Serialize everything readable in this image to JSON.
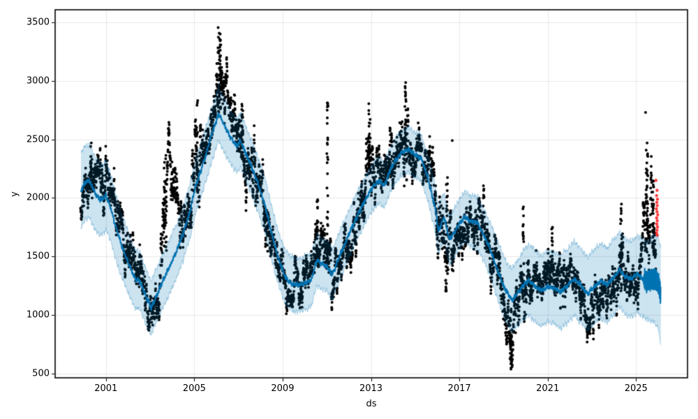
{
  "chart_data": {
    "type": "line+scatter+band",
    "title": "",
    "xlabel": "ds",
    "ylabel": "y",
    "x_ticks": [
      2001,
      2005,
      2009,
      2013,
      2017,
      2021,
      2025
    ],
    "y_ticks": [
      500,
      1000,
      1500,
      2000,
      2500,
      3000,
      3500
    ],
    "xlim": [
      1998.7,
      2027.33
    ],
    "ylim": [
      464,
      3607
    ],
    "grid": true,
    "legend": "none",
    "colors": {
      "observations": "#000000",
      "forecast_line": "#0072B2",
      "uncertainty_band": "rgba(0,114,178,0.2)",
      "band_edge": "rgba(0,114,178,0.28)",
      "anomalies": "rgba(255,0,0,0.78)",
      "grid": "rgba(128,128,128,0.18)",
      "axis": "#000000"
    },
    "series": {
      "forecast": {
        "name": "yhat-forecast-line",
        "keypoints": [
          [
            1999.87,
            2060
          ],
          [
            2000.05,
            2130
          ],
          [
            2000.25,
            2150
          ],
          [
            2000.5,
            2040
          ],
          [
            2000.75,
            1980
          ],
          [
            2001.0,
            2020
          ],
          [
            2001.2,
            1930
          ],
          [
            2001.45,
            1750
          ],
          [
            2001.7,
            1600
          ],
          [
            2002.0,
            1450
          ],
          [
            2002.3,
            1310
          ],
          [
            2002.55,
            1290
          ],
          [
            2002.8,
            1160
          ],
          [
            2003.05,
            1060
          ],
          [
            2003.3,
            1170
          ],
          [
            2003.6,
            1300
          ],
          [
            2003.9,
            1420
          ],
          [
            2004.2,
            1550
          ],
          [
            2004.5,
            1700
          ],
          [
            2004.8,
            1880
          ],
          [
            2005.05,
            2100
          ],
          [
            2005.3,
            2230
          ],
          [
            2005.6,
            2420
          ],
          [
            2005.85,
            2580
          ],
          [
            2006.1,
            2720
          ],
          [
            2006.35,
            2620
          ],
          [
            2006.6,
            2530
          ],
          [
            2006.9,
            2450
          ],
          [
            2007.1,
            2490
          ],
          [
            2007.35,
            2370
          ],
          [
            2007.6,
            2260
          ],
          [
            2007.9,
            2110
          ],
          [
            2008.2,
            1940
          ],
          [
            2008.5,
            1700
          ],
          [
            2008.8,
            1490
          ],
          [
            2009.1,
            1330
          ],
          [
            2009.4,
            1265
          ],
          [
            2009.7,
            1255
          ],
          [
            2010.0,
            1270
          ],
          [
            2010.3,
            1300
          ],
          [
            2010.55,
            1470
          ],
          [
            2010.75,
            1440
          ],
          [
            2011.0,
            1415
          ],
          [
            2011.25,
            1345
          ],
          [
            2011.5,
            1470
          ],
          [
            2011.75,
            1580
          ],
          [
            2012.0,
            1690
          ],
          [
            2012.3,
            1820
          ],
          [
            2012.6,
            1930
          ],
          [
            2012.9,
            2040
          ],
          [
            2013.1,
            2100
          ],
          [
            2013.35,
            2150
          ],
          [
            2013.6,
            2105
          ],
          [
            2013.85,
            2230
          ],
          [
            2014.1,
            2320
          ],
          [
            2014.4,
            2390
          ],
          [
            2014.7,
            2415
          ],
          [
            2015.0,
            2370
          ],
          [
            2015.3,
            2330
          ],
          [
            2015.6,
            2150
          ],
          [
            2015.9,
            1920
          ],
          [
            2016.05,
            1720
          ],
          [
            2016.3,
            1840
          ],
          [
            2016.55,
            1640
          ],
          [
            2016.8,
            1710
          ],
          [
            2017.0,
            1780
          ],
          [
            2017.25,
            1840
          ],
          [
            2017.5,
            1800
          ],
          [
            2017.8,
            1790
          ],
          [
            2018.1,
            1690
          ],
          [
            2018.4,
            1560
          ],
          [
            2018.7,
            1400
          ],
          [
            2019.0,
            1250
          ],
          [
            2019.35,
            1130
          ],
          [
            2019.6,
            1180
          ],
          [
            2019.9,
            1260
          ],
          [
            2020.15,
            1300
          ],
          [
            2020.4,
            1250
          ],
          [
            2020.7,
            1210
          ],
          [
            2021.0,
            1240
          ],
          [
            2021.3,
            1230
          ],
          [
            2021.6,
            1200
          ],
          [
            2021.9,
            1250
          ],
          [
            2022.2,
            1310
          ],
          [
            2022.5,
            1250
          ],
          [
            2022.8,
            1180
          ],
          [
            2023.1,
            1240
          ],
          [
            2023.4,
            1290
          ],
          [
            2023.7,
            1260
          ],
          [
            2024.0,
            1320
          ],
          [
            2024.25,
            1390
          ],
          [
            2024.5,
            1330
          ],
          [
            2024.8,
            1310
          ],
          [
            2025.05,
            1350
          ],
          [
            2025.3,
            1310
          ],
          [
            2025.55,
            1290
          ],
          [
            2025.8,
            1310
          ],
          [
            2026.0,
            1280
          ],
          [
            2026.12,
            1170
          ]
        ]
      },
      "uncertainty": {
        "name": "interval-halfwidth",
        "keypoints": [
          [
            1999.87,
            320
          ],
          [
            2000.5,
            310
          ],
          [
            2001.5,
            280
          ],
          [
            2002.5,
            240
          ],
          [
            2003.5,
            230
          ],
          [
            2005,
            230
          ],
          [
            2006.5,
            230
          ],
          [
            2008,
            230
          ],
          [
            2009.5,
            230
          ],
          [
            2011,
            215
          ],
          [
            2012.5,
            200
          ],
          [
            2014,
            190
          ],
          [
            2015.5,
            200
          ],
          [
            2017,
            210
          ],
          [
            2018.3,
            230
          ],
          [
            2019.3,
            260
          ],
          [
            2020,
            300
          ],
          [
            2022,
            310
          ],
          [
            2024,
            320
          ],
          [
            2025.5,
            330
          ],
          [
            2026.12,
            410
          ]
        ]
      },
      "observations": {
        "name": "history-y-scatter",
        "x_range": [
          1999.85,
          2025.9
        ],
        "trend": [
          [
            1999.85,
            1950,
            70
          ],
          [
            2000.1,
            2130,
            110
          ],
          [
            2000.4,
            2230,
            110
          ],
          [
            2000.7,
            2150,
            110
          ],
          [
            2001.0,
            2180,
            130
          ],
          [
            2001.3,
            2000,
            110
          ],
          [
            2001.6,
            1730,
            100
          ],
          [
            2001.95,
            1600,
            90
          ],
          [
            2002.3,
            1400,
            90
          ],
          [
            2002.6,
            1330,
            90
          ],
          [
            2002.9,
            1090,
            100
          ],
          [
            2003.1,
            1000,
            85
          ],
          [
            2003.4,
            1200,
            90
          ],
          [
            2003.65,
            1900,
            230
          ],
          [
            2003.9,
            2150,
            140
          ],
          [
            2004.15,
            2050,
            150
          ],
          [
            2004.4,
            1800,
            130
          ],
          [
            2004.65,
            1850,
            120
          ],
          [
            2004.9,
            2050,
            150
          ],
          [
            2005.12,
            2350,
            200
          ],
          [
            2005.35,
            2330,
            130
          ],
          [
            2005.6,
            2450,
            120
          ],
          [
            2005.85,
            2620,
            140
          ],
          [
            2006.1,
            2950,
            180
          ],
          [
            2006.35,
            2920,
            150
          ],
          [
            2006.6,
            2700,
            140
          ],
          [
            2006.9,
            2560,
            130
          ],
          [
            2007.2,
            2500,
            130
          ],
          [
            2007.5,
            2350,
            120
          ],
          [
            2007.8,
            2200,
            130
          ],
          [
            2008.1,
            2000,
            130
          ],
          [
            2008.4,
            1800,
            120
          ],
          [
            2008.7,
            1550,
            110
          ],
          [
            2009.0,
            1320,
            110
          ],
          [
            2009.3,
            1200,
            90
          ],
          [
            2009.6,
            1250,
            90
          ],
          [
            2009.9,
            1280,
            90
          ],
          [
            2010.2,
            1330,
            100
          ],
          [
            2010.5,
            1560,
            150
          ],
          [
            2010.75,
            1540,
            130
          ],
          [
            2011.0,
            1550,
            160
          ],
          [
            2011.25,
            1300,
            110
          ],
          [
            2011.5,
            1400,
            110
          ],
          [
            2011.8,
            1550,
            110
          ],
          [
            2012.1,
            1700,
            110
          ],
          [
            2012.4,
            1820,
            120
          ],
          [
            2012.7,
            2000,
            140
          ],
          [
            2012.95,
            2280,
            180
          ],
          [
            2013.2,
            2250,
            140
          ],
          [
            2013.5,
            2150,
            120
          ],
          [
            2013.8,
            2300,
            130
          ],
          [
            2014.1,
            2380,
            130
          ],
          [
            2014.4,
            2450,
            150
          ],
          [
            2014.6,
            2520,
            160
          ],
          [
            2014.9,
            2400,
            130
          ],
          [
            2015.2,
            2350,
            130
          ],
          [
            2015.5,
            2260,
            140
          ],
          [
            2015.8,
            2100,
            140
          ],
          [
            2016.05,
            1600,
            170
          ],
          [
            2016.3,
            1800,
            170
          ],
          [
            2016.55,
            1620,
            120
          ],
          [
            2016.8,
            1600,
            110
          ],
          [
            2017.1,
            1700,
            120
          ],
          [
            2017.4,
            1780,
            130
          ],
          [
            2017.7,
            1780,
            130
          ],
          [
            2018.0,
            1700,
            130
          ],
          [
            2018.3,
            1580,
            120
          ],
          [
            2018.6,
            1450,
            120
          ],
          [
            2018.9,
            1280,
            130
          ],
          [
            2019.15,
            1050,
            140
          ],
          [
            2019.35,
            830,
            150
          ],
          [
            2019.6,
            1050,
            140
          ],
          [
            2019.85,
            1350,
            170
          ],
          [
            2020.1,
            1380,
            140
          ],
          [
            2020.4,
            1280,
            110
          ],
          [
            2020.7,
            1250,
            100
          ],
          [
            2021.0,
            1300,
            120
          ],
          [
            2021.3,
            1380,
            130
          ],
          [
            2021.6,
            1250,
            120
          ],
          [
            2021.9,
            1280,
            110
          ],
          [
            2022.2,
            1270,
            100
          ],
          [
            2022.5,
            1150,
            100
          ],
          [
            2022.8,
            1030,
            90
          ],
          [
            2023.1,
            1080,
            90
          ],
          [
            2023.4,
            1180,
            100
          ],
          [
            2023.7,
            1200,
            110
          ],
          [
            2024.0,
            1250,
            120
          ],
          [
            2024.3,
            1450,
            180
          ],
          [
            2024.55,
            1320,
            130
          ],
          [
            2024.8,
            1180,
            110
          ],
          [
            2025.05,
            1300,
            120
          ],
          [
            2025.3,
            1500,
            150
          ],
          [
            2025.5,
            1950,
            220
          ],
          [
            2025.7,
            1900,
            180
          ],
          [
            2025.9,
            1800,
            140
          ]
        ]
      },
      "volatility_clusters": [
        [
          2000.33,
          0.1,
          2150,
          2500,
          16
        ],
        [
          2003.68,
          0.12,
          1550,
          2370,
          26
        ],
        [
          2005.12,
          0.07,
          2050,
          2890,
          22
        ],
        [
          2006.14,
          0.15,
          2720,
          3460,
          40
        ],
        [
          2007.15,
          0.1,
          2300,
          2800,
          24
        ],
        [
          2010.58,
          0.07,
          1400,
          2090,
          20
        ],
        [
          2011.03,
          0.06,
          1400,
          2820,
          34
        ],
        [
          2012.93,
          0.1,
          2120,
          2800,
          30
        ],
        [
          2014.56,
          0.06,
          2350,
          2975,
          24
        ],
        [
          2016.43,
          0.07,
          1340,
          2230,
          22
        ],
        [
          2019.33,
          0.09,
          600,
          1090,
          26
        ],
        [
          2019.9,
          0.05,
          1270,
          1930,
          18
        ],
        [
          2021.2,
          0.05,
          1450,
          1760,
          12
        ],
        [
          2024.32,
          0.06,
          1180,
          1950,
          22
        ],
        [
          2025.5,
          0.09,
          1520,
          2470,
          30
        ],
        [
          2025.78,
          0.07,
          1650,
          2200,
          24
        ]
      ],
      "extra_points": [
        [
          2006.08,
          3455
        ],
        [
          2011.04,
          2810
        ],
        [
          2012.9,
          2805
        ],
        [
          2014.57,
          2985
        ],
        [
          2016.68,
          2490
        ],
        [
          2025.43,
          2730
        ]
      ],
      "anomalies": {
        "name": "flagged-anomalies-red",
        "points": [
          [
            2025.9,
            2150
          ],
          [
            2025.95,
            2065
          ],
          [
            2025.93,
            2020
          ],
          [
            2025.97,
            1990
          ],
          [
            2025.94,
            1962
          ],
          [
            2025.96,
            1935
          ],
          [
            2025.92,
            1908
          ],
          [
            2025.95,
            1882
          ],
          [
            2025.98,
            1856
          ],
          [
            2025.93,
            1830
          ],
          [
            2025.96,
            1805
          ],
          [
            2025.94,
            1778
          ],
          [
            2025.97,
            1752
          ],
          [
            2025.95,
            1726
          ],
          [
            2025.93,
            1700
          ],
          [
            2025.96,
            1682
          ]
        ]
      }
    },
    "render": {
      "seed": 11,
      "points_per_year": 200,
      "ar_rho": 0.88,
      "dot_radius": 2.0,
      "anomaly_radius": 2.2,
      "line_width": 2,
      "band_sample_step": 0.0125,
      "line_sample_step": 0.0042,
      "line_wiggle": {
        "a1": 11,
        "f1": 17.3,
        "a2": 7,
        "f2": 6.1
      },
      "tail_wiggle": {
        "start": 2025.32,
        "amp": 80,
        "freq": 30.4
      },
      "band_jitter": {
        "a1": 13,
        "f1": 8.7,
        "a2": 9,
        "f2": 21.3
      }
    }
  }
}
